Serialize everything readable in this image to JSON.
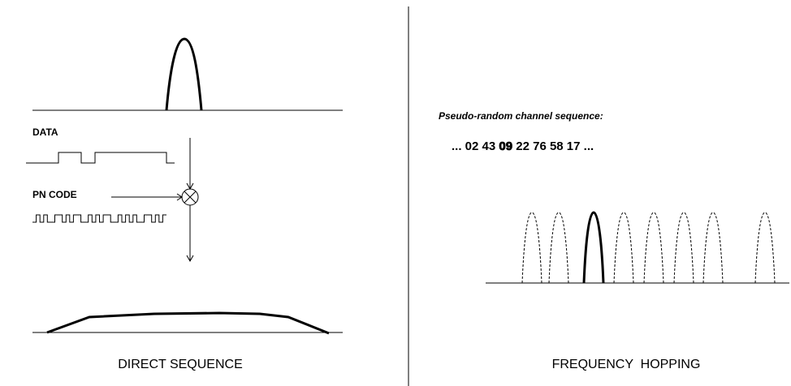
{
  "direct_sequence": {
    "data_label": "DATA",
    "pn_code_label": "PN CODE",
    "title": "DIRECT SEQUENCE"
  },
  "frequency_hopping": {
    "caption": "Pseudo-random channel sequence:",
    "sequence": {
      "before": "... 02 43",
      "highlight": "09",
      "after": "22 76 58 17 ..."
    },
    "title": "FREQUENCY  HOPPING"
  }
}
